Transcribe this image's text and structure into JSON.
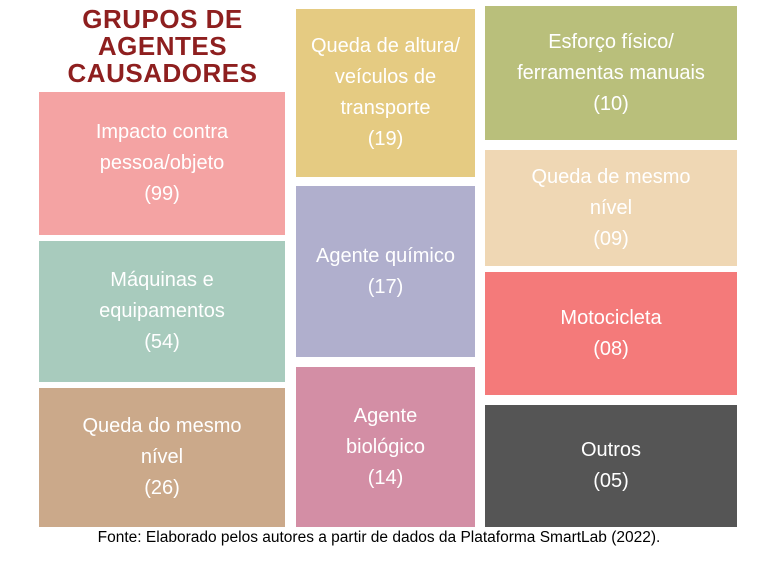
{
  "title": {
    "line1": "GRUPOS DE",
    "line2": "AGENTES",
    "line3": "CAUSADORES"
  },
  "groups": [
    {
      "label": "Impacto contra pessoa/objeto",
      "value": "(99)",
      "color": "#f4a3a3"
    },
    {
      "label": "Máquinas e equipamentos",
      "value": "(54)",
      "color": "#a8cbbd"
    },
    {
      "label": "Queda do mesmo nível",
      "value": "(26)",
      "color": "#cba98a"
    },
    {
      "label": "Queda de altura/ veículos de transporte",
      "value": "(19)",
      "color": "#e5cb82"
    },
    {
      "label": "Agente químico",
      "value": "(17)",
      "color": "#b0afcd"
    },
    {
      "label": "Agente biológico",
      "value": "(14)",
      "color": "#d38ea5"
    },
    {
      "label": "Esforço físico/ ferramentas manuais",
      "value": "(10)",
      "color": "#b9bf7b"
    },
    {
      "label": "Queda de mesmo nível",
      "value": "(09)",
      "color": "#efd7b4"
    },
    {
      "label": "Motocicleta",
      "value": "(08)",
      "color": "#f47a7a"
    },
    {
      "label": "Outros",
      "value": "(05)",
      "color": "#555555"
    }
  ],
  "caption": "Fonte: Elaborado pelos autores a partir de dados da Plataforma SmartLab (2022)."
}
